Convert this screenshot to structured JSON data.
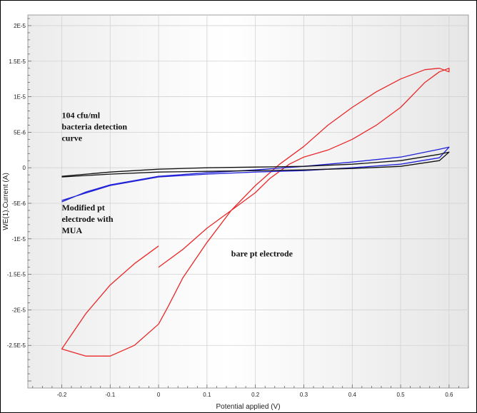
{
  "chart_data": {
    "type": "line",
    "xlabel": "Potential applied (V)",
    "ylabel": "WE(1).Current (A)",
    "xlim": [
      -0.27,
      0.64
    ],
    "ylim": [
      -3.1e-05,
      2.15e-05
    ],
    "x_ticks": [
      -0.2,
      -0.1,
      0,
      0.1,
      0.2,
      0.3,
      0.4,
      0.5,
      0.6
    ],
    "x_tick_labels": [
      "-0.2",
      "-0.1",
      "0",
      "0.1",
      "0.2",
      "0.3",
      "0.4",
      "0.5",
      "0.6"
    ],
    "y_ticks": [
      2e-05,
      1.5e-05,
      1e-05,
      5e-06,
      0,
      -5e-06,
      -1e-05,
      -1.5e-05,
      -2e-05,
      -2.5e-05
    ],
    "y_tick_labels": [
      "2E-5",
      "1.5E-5",
      "1E-5",
      "5E-6",
      "0",
      "-5E-6",
      "-1E-5",
      "-1.5E-5",
      "-2E-5",
      "-2.5E-5"
    ],
    "grid": true,
    "series": [
      {
        "color": "#e8282a",
        "x": [
          0,
          0.05,
          0.1,
          0.15,
          0.2,
          0.23,
          0.27,
          0.3,
          0.35,
          0.4,
          0.45,
          0.5,
          0.55,
          0.58,
          0.6,
          0.6,
          0.58,
          0.55,
          0.5,
          0.45,
          0.4,
          0.35,
          0.3,
          0.25,
          0.2,
          0.15,
          0.1,
          0.05,
          0.02,
          0,
          -0.05,
          -0.1,
          -0.15,
          -0.2,
          -0.15,
          -0.1,
          -0.05,
          0
        ],
        "y": [
          -1.4e-05,
          -1.15e-05,
          -8.5e-06,
          -6e-06,
          -3.5e-06,
          -1.5e-06,
          5e-07,
          1.5e-06,
          2.5e-06,
          4e-06,
          6e-06,
          8.5e-06,
          1.2e-05,
          1.35e-05,
          1.4e-05,
          1.35e-05,
          1.4e-05,
          1.38e-05,
          1.25e-05,
          1.07e-05,
          8.5e-06,
          6e-06,
          3e-06,
          5e-07,
          -2.5e-06,
          -6e-06,
          -1.05e-05,
          -1.55e-05,
          -1.95e-05,
          -2.2e-05,
          -2.5e-05,
          -2.65e-05,
          -2.65e-05,
          -2.55e-05,
          -2.05e-05,
          -1.65e-05,
          -1.35e-05,
          -1.1e-05
        ]
      },
      {
        "color": "#2222d8",
        "x": [
          -0.2,
          -0.15,
          -0.1,
          -0.05,
          0,
          0.1,
          0.2,
          0.3,
          0.4,
          0.5,
          0.58,
          0.6,
          0.58,
          0.5,
          0.4,
          0.3,
          0.2,
          0.1,
          0,
          -0.1,
          -0.2
        ],
        "y": [
          -4.8e-06,
          -3.4e-06,
          -2.4e-06,
          -1.8e-06,
          -1.2e-06,
          -7e-07,
          -3e-07,
          2e-07,
          8e-07,
          1.5e-06,
          2.6e-06,
          2.9e-06,
          1.4e-06,
          5e-07,
          0,
          -4e-07,
          -6e-07,
          -9e-07,
          -1.3e-06,
          -2.5e-06,
          -4.6e-06
        ]
      },
      {
        "color": "#111111",
        "x": [
          -0.2,
          -0.1,
          0,
          0.1,
          0.2,
          0.3,
          0.4,
          0.5,
          0.58,
          0.6,
          0.58,
          0.5,
          0.4,
          0.3,
          0.2,
          0.1,
          0,
          -0.1,
          -0.2
        ],
        "y": [
          -1.2e-06,
          -6e-07,
          -2e-07,
          0,
          1e-07,
          2e-07,
          5e-07,
          1e-06,
          1.9e-06,
          2.2e-06,
          1e-06,
          2e-07,
          -1e-07,
          -3e-07,
          -4e-07,
          -5e-07,
          -6e-07,
          -9e-07,
          -1.3e-06
        ]
      }
    ],
    "annotations": [
      {
        "lines": [
          "104 cfu/ml",
          "bacteria detection",
          "curve"
        ],
        "x": -0.2,
        "y": 7e-06
      },
      {
        "lines": [
          "Modified pt",
          "electrode with",
          "MUA"
        ],
        "x": -0.2,
        "y": -6e-06
      },
      {
        "lines": [
          "bare pt electrode"
        ],
        "x": 0.15,
        "y": -1.25e-05
      }
    ]
  }
}
